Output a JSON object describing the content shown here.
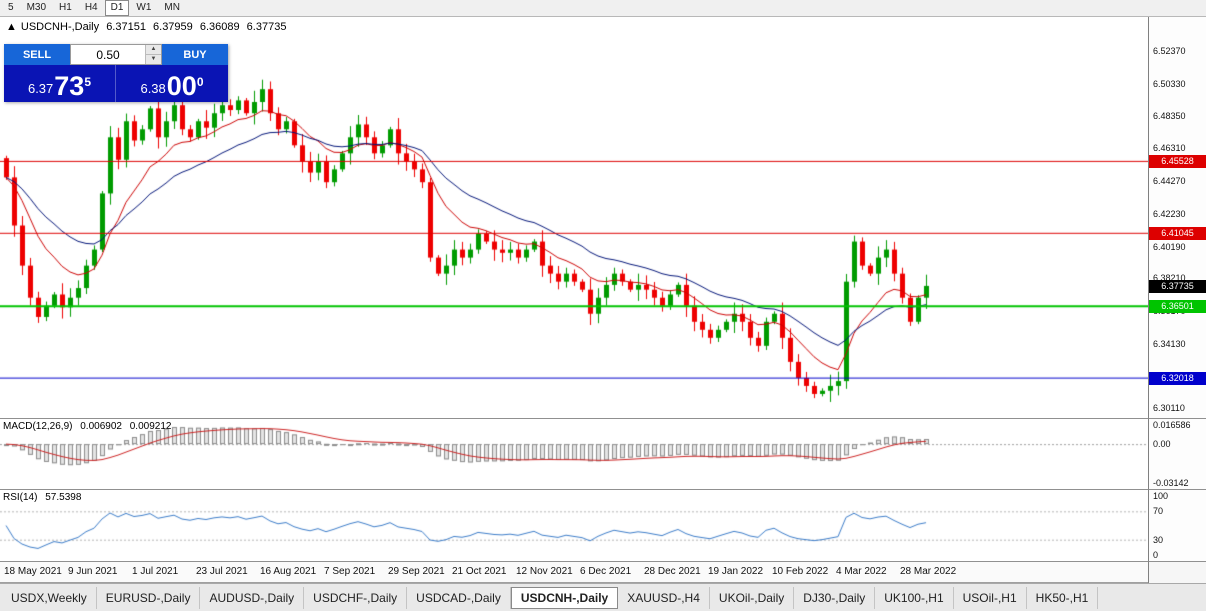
{
  "toolbar": {
    "timeframes": [
      "5",
      "M30",
      "H1",
      "H4",
      "D1",
      "W1",
      "MN"
    ],
    "active": "D1"
  },
  "chart": {
    "collapse_icon": "▲",
    "title": "USDCNH-,Daily",
    "open": "6.37151",
    "high": "6.37959",
    "low": "6.36089",
    "close": "6.37735"
  },
  "trade_widget": {
    "sell_label": "SELL",
    "buy_label": "BUY",
    "volume": "0.50",
    "spinner_up_icon": "▲",
    "spinner_down_icon": "▼",
    "sell_price": {
      "prefix": "6.37",
      "big": "73",
      "sup": "5"
    },
    "buy_price": {
      "prefix": "6.38",
      "big": "00",
      "sup": "0"
    }
  },
  "macd_panel": {
    "label": "MACD(12,26,9)",
    "value_main": "0.006902",
    "value_signal": "0.009212"
  },
  "rsi_panel": {
    "label": "RSI(14)",
    "value": "57.5398"
  },
  "tabs": {
    "items": [
      "USDX,Weekly",
      "EURUSD-,Daily",
      "AUDUSD-,Daily",
      "USDCHF-,Daily",
      "USDCAD-,Daily",
      "USDCNH-,Daily",
      "XAUUSD-,H4",
      "UKOil-,Daily",
      "DJ30-,Daily",
      "UK100-,H1",
      "USOil-,H1",
      "HK50-,H1"
    ],
    "active": "USDCNH-,Daily"
  },
  "chart_data": {
    "type": "candlestick",
    "symbol": "USDCNH-",
    "timeframe": "Daily",
    "current_ohlc": {
      "open": 6.37151,
      "high": 6.37959,
      "low": 6.36089,
      "close": 6.37735
    },
    "price_range": [
      6.295,
      6.545
    ],
    "y_ticks": [
      "6.52370",
      "6.50330",
      "6.48350",
      "6.46310",
      "6.44270",
      "6.42230",
      "6.40190",
      "6.38210",
      "6.36170",
      "6.34130",
      "6.32090",
      "6.30110"
    ],
    "x_labels": [
      "18 May 2021",
      "9 Jun 2021",
      "1 Jul 2021",
      "23 Jul 2021",
      "16 Aug 2021",
      "7 Sep 2021",
      "29 Sep 2021",
      "21 Oct 2021",
      "12 Nov 2021",
      "6 Dec 2021",
      "28 Dec 2021",
      "19 Jan 2022",
      "10 Feb 2022",
      "4 Mar 2022",
      "28 Mar 2022"
    ],
    "closes": [
      6.445,
      6.415,
      6.39,
      6.37,
      6.358,
      6.365,
      6.372,
      6.364,
      6.37,
      6.376,
      6.39,
      6.4,
      6.435,
      6.47,
      6.456,
      6.48,
      6.468,
      6.475,
      6.488,
      6.47,
      6.48,
      6.49,
      6.475,
      6.47,
      6.48,
      6.476,
      6.485,
      6.49,
      6.487,
      6.493,
      6.485,
      6.492,
      6.5,
      6.485,
      6.475,
      6.48,
      6.465,
      6.455,
      6.448,
      6.455,
      6.442,
      6.45,
      6.46,
      6.47,
      6.478,
      6.47,
      6.46,
      6.465,
      6.475,
      6.46,
      6.455,
      6.45,
      6.442,
      6.395,
      6.385,
      6.39,
      6.4,
      6.395,
      6.4,
      6.41,
      6.405,
      6.4,
      6.398,
      6.4,
      6.395,
      6.4,
      6.405,
      6.39,
      6.385,
      6.38,
      6.385,
      6.38,
      6.375,
      6.36,
      6.37,
      6.378,
      6.385,
      6.38,
      6.375,
      6.378,
      6.375,
      6.37,
      6.365,
      6.372,
      6.378,
      6.365,
      6.355,
      6.35,
      6.345,
      6.35,
      6.355,
      6.36,
      6.355,
      6.345,
      6.34,
      6.355,
      6.36,
      6.345,
      6.33,
      6.32,
      6.315,
      6.31,
      6.312,
      6.315,
      6.318,
      6.38,
      6.405,
      6.39,
      6.385,
      6.395,
      6.4,
      6.385,
      6.37,
      6.355,
      6.37,
      6.37735
    ],
    "levels": [
      {
        "price": 6.45528,
        "label": "6.45528",
        "color": "#dd0000",
        "width": 1
      },
      {
        "price": 6.41045,
        "label": "6.41045",
        "color": "#dd0000",
        "width": 1
      },
      {
        "price": 6.36501,
        "label": "6.36501",
        "color": "#00c400",
        "width": 2
      },
      {
        "price": 6.32018,
        "label": "6.32018",
        "color": "#0000cc",
        "width": 1
      }
    ],
    "current_price": {
      "price": 6.37735,
      "label": "6.37735",
      "color": "#000000"
    },
    "candle_up_color": "#009b00",
    "candle_down_color": "#ee0000",
    "ma_fast": {
      "period": 10,
      "color": "#cc0000"
    },
    "ma_slow": {
      "period": 22,
      "color": "#001478"
    },
    "macd": {
      "params": [
        12,
        26,
        9
      ],
      "range": [
        -0.034,
        0.019
      ],
      "axis": [
        {
          "label": "0.016586",
          "v": 0.016586
        },
        {
          "label": "0.00",
          "v": 0
        },
        {
          "label": "-0.03142",
          "v": -0.03142
        }
      ],
      "hist_fill": "#e4e4e4",
      "hist_stroke": "#8c8c8c",
      "signal_color": "#cc2222"
    },
    "rsi": {
      "period": 14,
      "range": [
        0,
        100
      ],
      "levels": [
        70,
        30
      ],
      "axis": [
        {
          "label": "100",
          "v": 100
        },
        {
          "label": "70",
          "v": 70
        },
        {
          "label": "30",
          "v": 30
        },
        {
          "label": "0",
          "v": 0
        }
      ],
      "line_color": "#3a7bc8"
    }
  }
}
